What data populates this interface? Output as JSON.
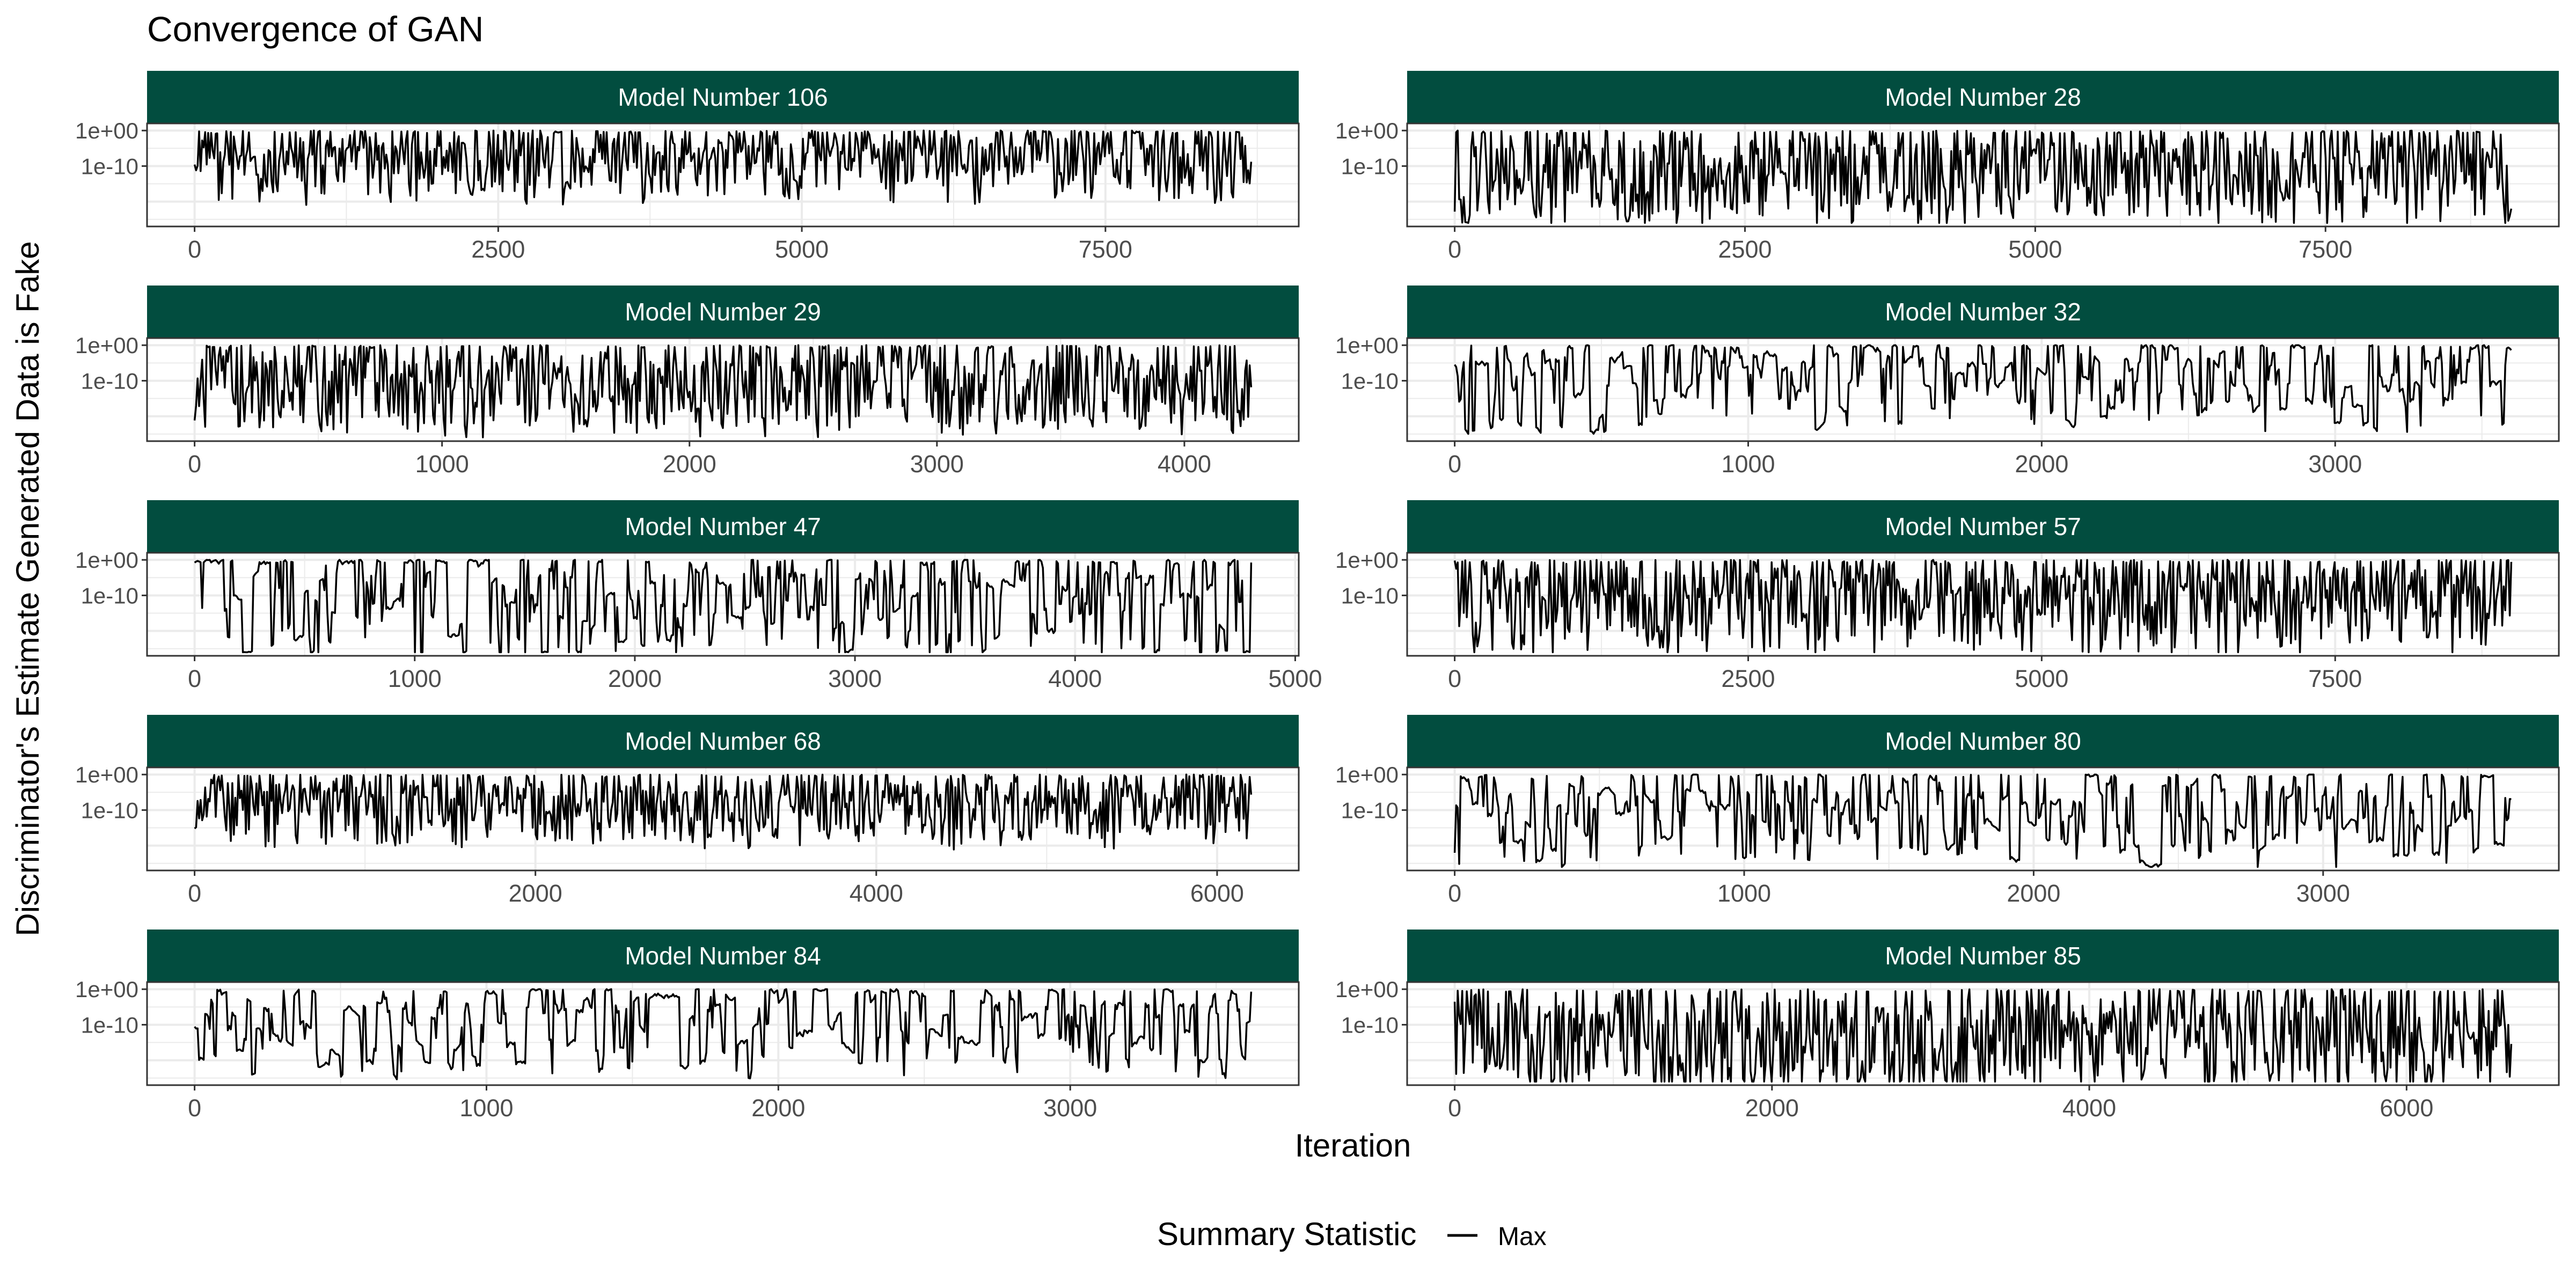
{
  "chart_data": {
    "type": "line",
    "title": "Convergence of GAN",
    "xlabel": "Iteration",
    "ylabel": "Discriminator's Estimate Generated Data is Fake",
    "y_scale": "log",
    "y_tick_labels": [
      "1e+00",
      "1e-10"
    ],
    "grid": true,
    "legend": {
      "title": "Summary Statistic",
      "position": "bottom",
      "entries": [
        "Max"
      ]
    },
    "colors": {
      "strip": "#024d3f",
      "line": "#000000",
      "panel_border": "#333333",
      "grid": "#ebebeb"
    },
    "facets": [
      {
        "label": "Model Number 106",
        "xmax": 8700,
        "x_ticks": [
          0,
          2500,
          5000,
          7500
        ],
        "x_tick_labels": [
          "0",
          "2500",
          "5000",
          "7500"
        ],
        "seed": 106,
        "pattern": "dense",
        "noise": 8,
        "bias": 8
      },
      {
        "label": "Model Number 28",
        "xmax": 9100,
        "x_ticks": [
          0,
          2500,
          5000,
          7500
        ],
        "x_tick_labels": [
          "0",
          "2500",
          "5000",
          "7500"
        ],
        "seed": 28,
        "pattern": "dense",
        "noise": 11,
        "bias": 10
      },
      {
        "label": "Model Number 29",
        "xmax": 4270,
        "x_ticks": [
          0,
          1000,
          2000,
          3000,
          4000
        ],
        "x_tick_labels": [
          "0",
          "1000",
          "2000",
          "3000",
          "4000"
        ],
        "seed": 29,
        "pattern": "dense",
        "noise": 10,
        "bias": 10
      },
      {
        "label": "Model Number 32",
        "xmax": 3600,
        "x_ticks": [
          0,
          1000,
          2000,
          3000
        ],
        "x_tick_labels": [
          "0",
          "1000",
          "2000",
          "3000"
        ],
        "seed": 32,
        "pattern": "sparse",
        "noise": 9,
        "bias": 12
      },
      {
        "label": "Model Number 47",
        "xmax": 4800,
        "x_ticks": [
          0,
          1000,
          2000,
          3000,
          4000,
          5000
        ],
        "x_tick_labels": [
          "0",
          "1000",
          "2000",
          "3000",
          "4000",
          "5000"
        ],
        "seed": 47,
        "pattern": "sparse",
        "noise": 12,
        "bias": 8
      },
      {
        "label": "Model Number 57",
        "xmax": 9000,
        "x_ticks": [
          0,
          2500,
          5000,
          7500
        ],
        "x_tick_labels": [
          "0",
          "2500",
          "5000",
          "7500"
        ],
        "seed": 57,
        "pattern": "dense",
        "noise": 11,
        "bias": 9
      },
      {
        "label": "Model Number 68",
        "xmax": 6200,
        "x_ticks": [
          0,
          2000,
          4000,
          6000
        ],
        "x_tick_labels": [
          "0",
          "2000",
          "4000",
          "6000"
        ],
        "seed": 68,
        "pattern": "dense",
        "noise": 8,
        "bias": 8
      },
      {
        "label": "Model Number 80",
        "xmax": 3650,
        "x_ticks": [
          0,
          1000,
          2000,
          3000
        ],
        "x_tick_labels": [
          "0",
          "1000",
          "2000",
          "3000"
        ],
        "seed": 80,
        "pattern": "sparse",
        "noise": 10,
        "bias": 12
      },
      {
        "label": "Model Number 84",
        "xmax": 3620,
        "x_ticks": [
          0,
          1000,
          2000,
          3000
        ],
        "x_tick_labels": [
          "0",
          "1000",
          "2000",
          "3000"
        ],
        "seed": 84,
        "pattern": "sparse",
        "noise": 10,
        "bias": 9
      },
      {
        "label": "Model Number 85",
        "xmax": 6660,
        "x_ticks": [
          0,
          2000,
          4000,
          6000
        ],
        "x_tick_labels": [
          "0",
          "2000",
          "4000",
          "6000"
        ],
        "seed": 85,
        "pattern": "dense",
        "noise": 12,
        "bias": 14
      }
    ]
  }
}
